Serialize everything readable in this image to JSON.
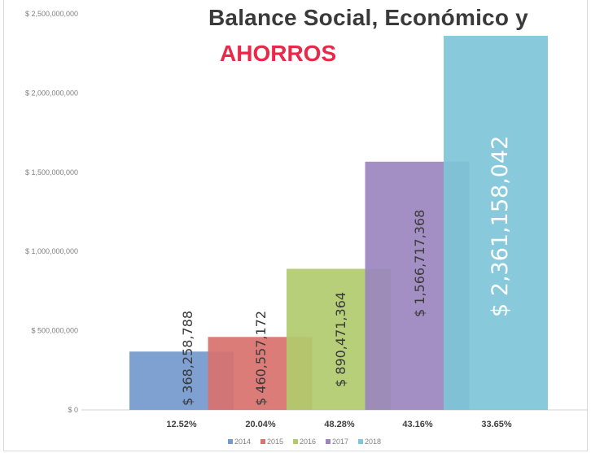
{
  "header": {
    "title": "Balance Social, Económico y",
    "subtitle": "AHORROS"
  },
  "chart_data": {
    "type": "bar",
    "categories": [
      "2014",
      "2015",
      "2016",
      "2017",
      "2018"
    ],
    "values": [
      368258788,
      460557172,
      890471364,
      1566717368,
      2361158042
    ],
    "value_labels": [
      "$ 368,258,788",
      "$ 460,557,172",
      "$ 890,471,364",
      "$ 1,566,717,368",
      "$ 2,361,158,042"
    ],
    "growth_labels": [
      "12.52%",
      "20.04%",
      "48.28%",
      "43.16%",
      "33.65%"
    ],
    "colors": [
      "#7399ce",
      "#d9716e",
      "#b0cb6d",
      "#9b85be",
      "#7ec6d8"
    ],
    "ylim": [
      0,
      2500000000
    ],
    "y_ticks": [
      0,
      500000000,
      1000000000,
      1500000000,
      2000000000,
      2500000000
    ],
    "y_tick_labels": [
      "$ 0",
      "$ 500,000,000",
      "$ 1,000,000,000",
      "$ 1,500,000,000",
      "$ 2,000,000,000",
      "$ 2,500,000,000"
    ],
    "legend": [
      "2014",
      "2015",
      "2016",
      "2017",
      "2018"
    ],
    "legend_position": "bottom",
    "grid": false
  }
}
